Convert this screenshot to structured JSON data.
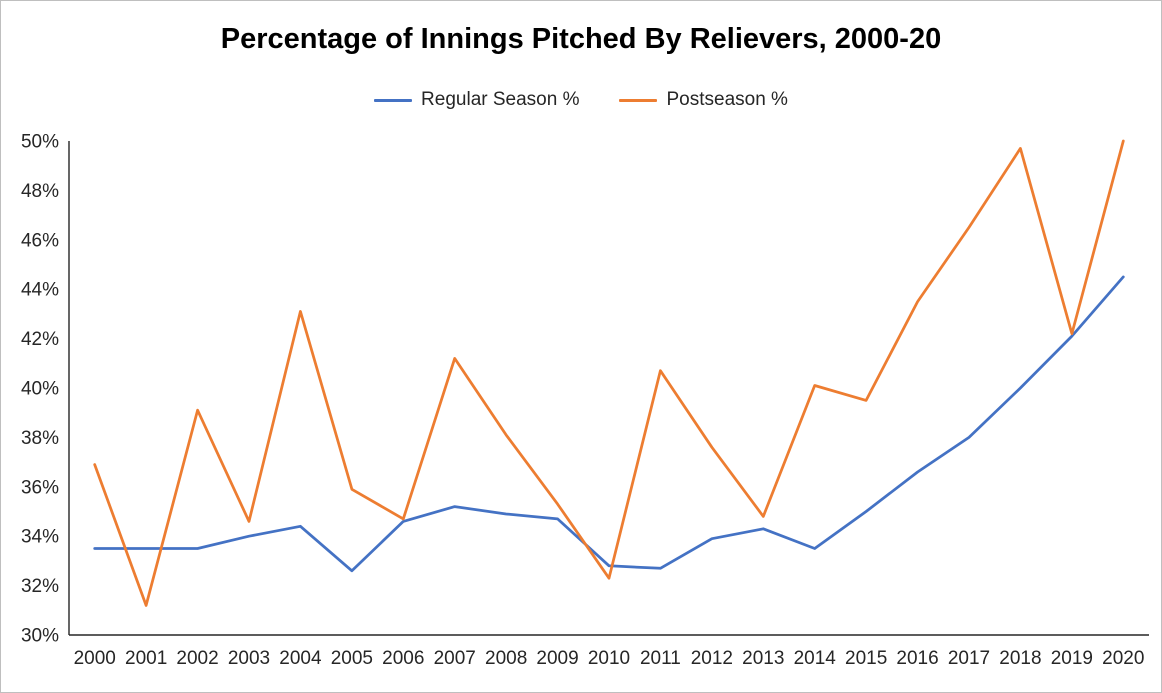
{
  "title": "Percentage of Innings Pitched By Relievers, 2000-20",
  "legend": [
    {
      "id": "regular-season",
      "label": "Regular Season %",
      "color": "#4472C4"
    },
    {
      "id": "postseason",
      "label": "Postseason %",
      "color": "#ED7D31"
    }
  ],
  "axis": {
    "line_color": "#262626",
    "label_color": "#262626",
    "y_suffix": "%"
  },
  "chart_data": {
    "type": "line",
    "title": "Percentage of Innings Pitched By Relievers, 2000-20",
    "xlabel": "",
    "ylabel": "",
    "x": [
      2000,
      2001,
      2002,
      2003,
      2004,
      2005,
      2006,
      2007,
      2008,
      2009,
      2010,
      2011,
      2012,
      2013,
      2014,
      2015,
      2016,
      2017,
      2018,
      2019,
      2020
    ],
    "series": [
      {
        "name": "Regular Season %",
        "color": "#4472C4",
        "values": [
          33.5,
          33.5,
          33.5,
          34.0,
          34.4,
          32.6,
          34.6,
          35.2,
          34.9,
          34.7,
          32.8,
          32.7,
          33.9,
          34.3,
          33.5,
          35.0,
          36.6,
          38.0,
          40.0,
          42.1,
          44.5
        ]
      },
      {
        "name": "Postseason %",
        "color": "#ED7D31",
        "values": [
          36.9,
          31.2,
          39.1,
          34.6,
          43.1,
          35.9,
          34.7,
          41.2,
          38.1,
          35.3,
          32.3,
          40.7,
          37.6,
          34.8,
          40.1,
          39.5,
          43.5,
          46.5,
          49.7,
          42.2,
          50.0
        ]
      }
    ],
    "ylim": [
      30,
      50
    ],
    "ytick_step": 2,
    "ytick_format": "percent",
    "grid": false,
    "legend_position": "top"
  }
}
